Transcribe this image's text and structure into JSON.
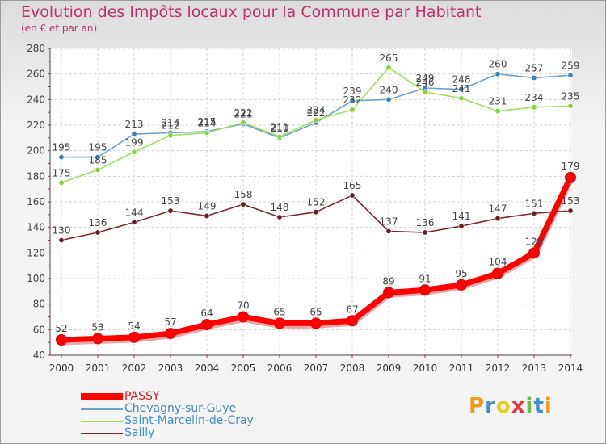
{
  "header": {
    "title": "Evolution des Impôts locaux pour la Commune par Habitant",
    "subtitle": "(en € et par an)"
  },
  "legend": [
    {
      "label": "PASSY",
      "color": "#ff0000"
    },
    {
      "label": "Chevagny-sur-Guye",
      "color": "#6aa1cf"
    },
    {
      "label": "Saint-Marcelin-de-Cray",
      "color": "#9ee05a"
    },
    {
      "label": "Sailly",
      "color": "#7a2a2a"
    }
  ],
  "logo": {
    "text": "Proxiti",
    "colors": [
      "#f39a1e",
      "#3f8fd2",
      "#e8ce1b",
      "#e8353a",
      "#6cbf3f",
      "#3f8fd2",
      "#f39a1e"
    ]
  },
  "chart_data": {
    "type": "line",
    "title": "Evolution des Impôts locaux pour la Commune par Habitant",
    "subtitle": "(en € et par an)",
    "xlabel": "",
    "ylabel": "",
    "ylim": [
      40,
      280
    ],
    "yticks": [
      40,
      60,
      80,
      100,
      120,
      140,
      160,
      180,
      200,
      220,
      240,
      260,
      280
    ],
    "grid": true,
    "categories": [
      "2000",
      "2001",
      "2002",
      "2003",
      "2004",
      "2005",
      "2006",
      "2007",
      "2008",
      "2009",
      "2010",
      "2011",
      "2012",
      "2013",
      "2014"
    ],
    "series": [
      {
        "name": "Chevagny-sur-Guye",
        "color": "#6aa1cf",
        "marker": "#3a80c0",
        "values": [
          195,
          195,
          213,
          214,
          215,
          221,
          210,
          222,
          239,
          240,
          249,
          248,
          260,
          257,
          259
        ]
      },
      {
        "name": "Saint-Marcelin-de-Cray",
        "color": "#9ee05a",
        "marker": "#86d23c",
        "values": [
          175,
          185,
          199,
          212,
          214,
          222,
          211,
          224,
          232,
          265,
          246,
          241,
          231,
          234,
          235
        ]
      },
      {
        "name": "Sailly",
        "color": "#7a2a2a",
        "marker": "#6a1d1d",
        "values": [
          130,
          136,
          144,
          153,
          149,
          158,
          148,
          152,
          165,
          137,
          136,
          141,
          147,
          151,
          153
        ]
      },
      {
        "name": "PASSY",
        "color": "#ff0000",
        "marker": "#ff0000",
        "values": [
          52,
          53,
          54,
          57,
          64,
          70,
          65,
          65,
          67,
          89,
          91,
          95,
          104,
          120,
          179
        ]
      }
    ]
  }
}
